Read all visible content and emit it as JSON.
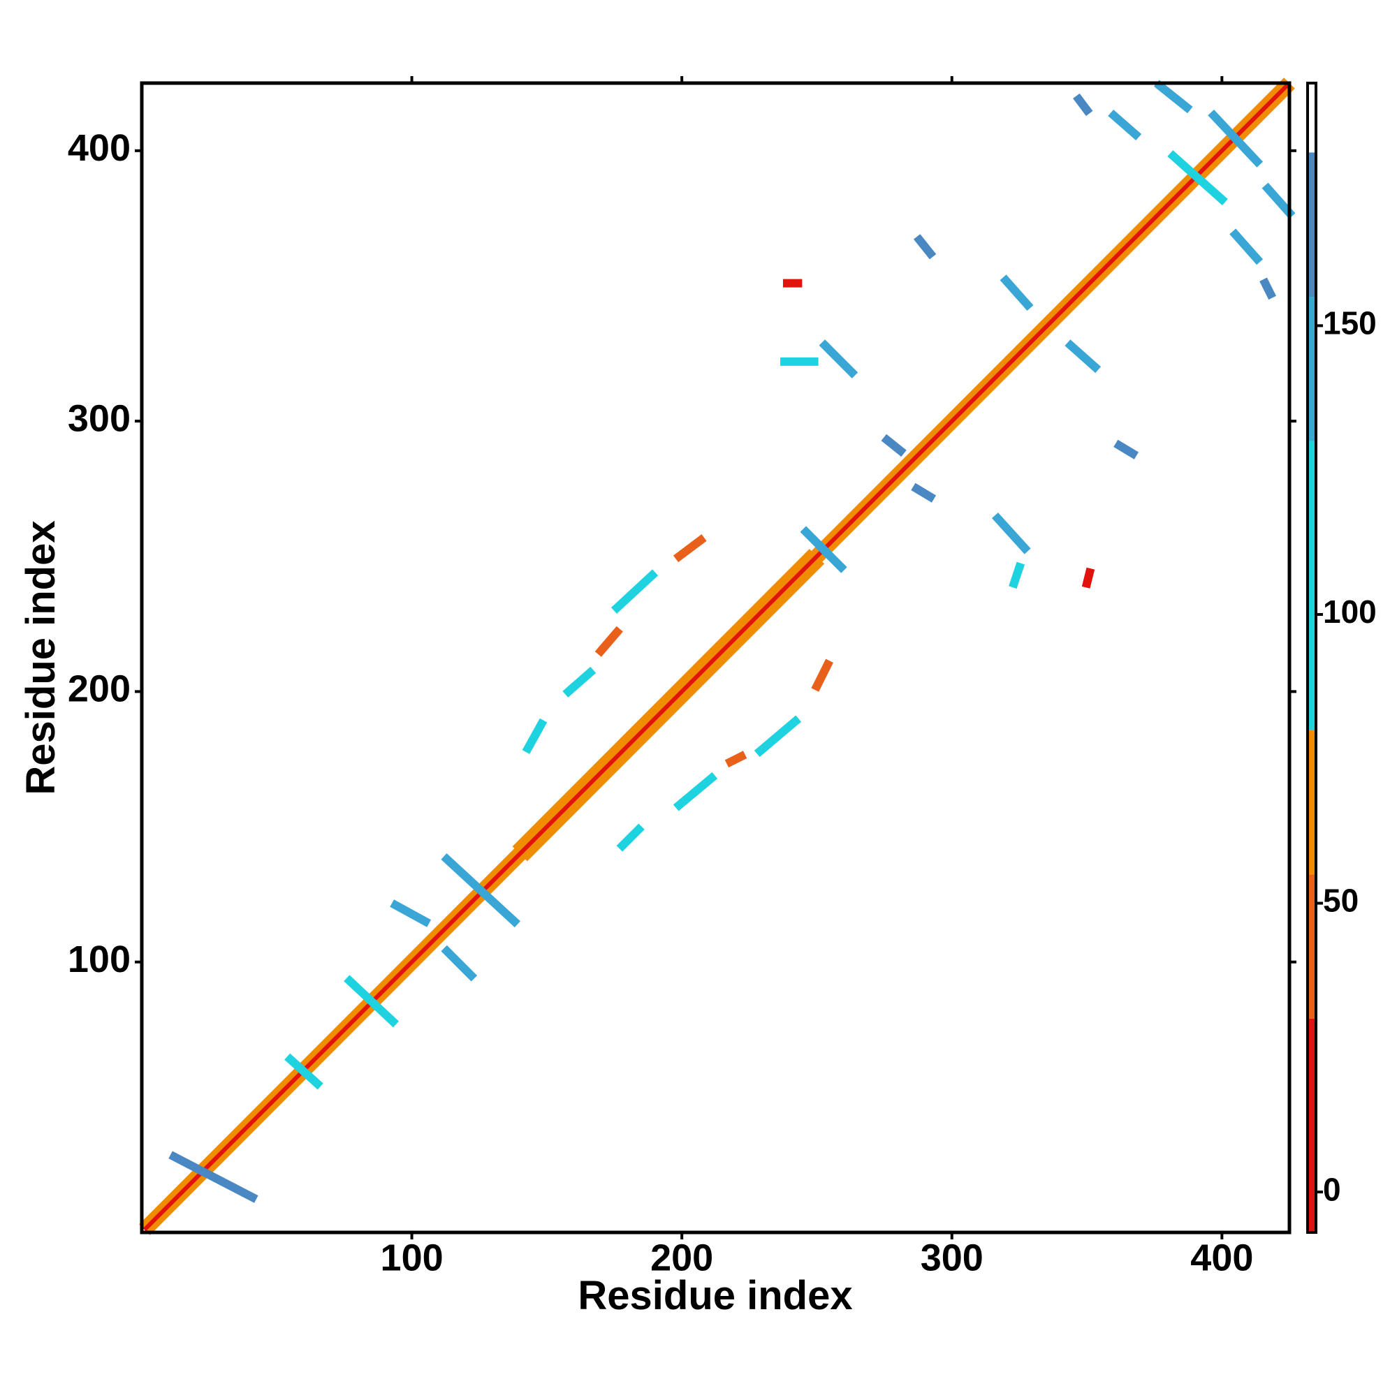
{
  "chart_data": {
    "type": "contact-map",
    "xlabel": "Residue index",
    "ylabel": "Residue index",
    "xlim": [
      0,
      425
    ],
    "ylim": [
      0,
      425
    ],
    "xticks": [
      100,
      200,
      300,
      400
    ],
    "yticks": [
      100,
      200,
      300,
      400
    ],
    "colorbar": {
      "lim": [
        -7,
        192
      ],
      "ticks": [
        0,
        50,
        100,
        150
      ],
      "bands": [
        {
          "from": -7,
          "to": 30,
          "color": "#e0140c"
        },
        {
          "from": 30,
          "to": 55,
          "color": "#e8601a"
        },
        {
          "from": 55,
          "to": 80,
          "color": "#f08c00"
        },
        {
          "from": 80,
          "to": 130,
          "color": "#1fd2e0"
        },
        {
          "from": 130,
          "to": 155,
          "color": "#3aa6d6"
        },
        {
          "from": 155,
          "to": 180,
          "color": "#4a88c4"
        },
        {
          "from": 180,
          "to": 192,
          "color": "#ffffff"
        }
      ]
    },
    "diagonal": [
      {
        "x": [
          1,
          425
        ],
        "y": [
          1,
          425
        ],
        "value": 60
      },
      {
        "x": [
          140,
          250
        ],
        "y": [
          140,
          250
        ],
        "value": 70
      },
      {
        "x": [
          1,
          425
        ],
        "y": [
          1,
          425
        ],
        "value": 10
      }
    ],
    "contacts": [
      {
        "x": [
          12,
          41
        ],
        "y": [
          28,
          13
        ],
        "value": 160
      },
      {
        "x": [
          55,
          65
        ],
        "y": [
          64,
          55
        ],
        "value": 120
      },
      {
        "x": [
          77,
          93
        ],
        "y": [
          93,
          78
        ],
        "value": 130
      },
      {
        "x": [
          94,
          105
        ],
        "y": [
          121,
          115
        ],
        "value": 140
      },
      {
        "x": [
          113,
          138
        ],
        "y": [
          138,
          115
        ],
        "value": 135
      },
      {
        "x": [
          113,
          122
        ],
        "y": [
          104,
          95
        ],
        "value": 140
      },
      {
        "x": [
          246,
          259
        ],
        "y": [
          259,
          246
        ],
        "value": 150
      },
      {
        "x": [
          317,
          327
        ],
        "y": [
          264,
          253
        ],
        "value": 155
      },
      {
        "x": [
          276,
          281
        ],
        "y": [
          293,
          289
        ],
        "value": 160
      },
      {
        "x": [
          287,
          292
        ],
        "y": [
          275,
          272
        ],
        "value": 160
      },
      {
        "x": [
          362,
          367
        ],
        "y": [
          291,
          288
        ],
        "value": 160
      },
      {
        "x": [
          253,
          263
        ],
        "y": [
          328,
          318
        ],
        "value": 150
      },
      {
        "x": [
          344,
          353
        ],
        "y": [
          328,
          320
        ],
        "value": 155
      },
      {
        "x": [
          320,
          328
        ],
        "y": [
          352,
          343
        ],
        "value": 155
      },
      {
        "x": [
          288,
          292
        ],
        "y": [
          367,
          362
        ],
        "value": 160
      },
      {
        "x": [
          405,
          413
        ],
        "y": [
          369,
          360
        ],
        "value": 155
      },
      {
        "x": [
          416,
          418
        ],
        "y": [
          351,
          347
        ],
        "value": 160
      },
      {
        "x": [
          417,
          425
        ],
        "y": [
          386,
          377
        ],
        "value": 155
      },
      {
        "x": [
          382,
          400
        ],
        "y": [
          398,
          382
        ],
        "value": 130
      },
      {
        "x": [
          397,
          413
        ],
        "y": [
          413,
          396
        ],
        "value": 135
      },
      {
        "x": [
          360,
          368
        ],
        "y": [
          413,
          406
        ],
        "value": 145
      },
      {
        "x": [
          377,
          387
        ],
        "y": [
          424,
          416
        ],
        "value": 140
      },
      {
        "x": [
          347,
          350
        ],
        "y": [
          419,
          415
        ],
        "value": 160
      },
      {
        "x": [
          143,
          148
        ],
        "y": [
          179,
          188
        ],
        "value": 95
      },
      {
        "x": [
          158,
          166
        ],
        "y": [
          200,
          207
        ],
        "value": 95
      },
      {
        "x": [
          176,
          189
        ],
        "y": [
          231,
          243
        ],
        "value": 95
      },
      {
        "x": [
          178,
          184
        ],
        "y": [
          143,
          149
        ],
        "value": 95
      },
      {
        "x": [
          199,
          211
        ],
        "y": [
          158,
          168
        ],
        "value": 95
      },
      {
        "x": [
          229,
          242
        ],
        "y": [
          178,
          189
        ],
        "value": 95
      },
      {
        "x": [
          170,
          176
        ],
        "y": [
          215,
          222
        ],
        "value": 40
      },
      {
        "x": [
          199,
          207
        ],
        "y": [
          250,
          256
        ],
        "value": 40
      },
      {
        "x": [
          218,
          222
        ],
        "y": [
          174,
          176
        ],
        "value": 40
      },
      {
        "x": [
          250,
          254
        ],
        "y": [
          202,
          210
        ],
        "value": 40
      },
      {
        "x": [
          239,
          243
        ],
        "y": [
          351,
          351
        ],
        "value": 10
      },
      {
        "x": [
          238,
          249
        ],
        "y": [
          322,
          322
        ],
        "value": 90
      },
      {
        "x": [
          350,
          351
        ],
        "y": [
          240,
          244
        ],
        "value": 10
      },
      {
        "x": [
          323,
          325
        ],
        "y": [
          240,
          246
        ],
        "value": 95
      }
    ]
  }
}
